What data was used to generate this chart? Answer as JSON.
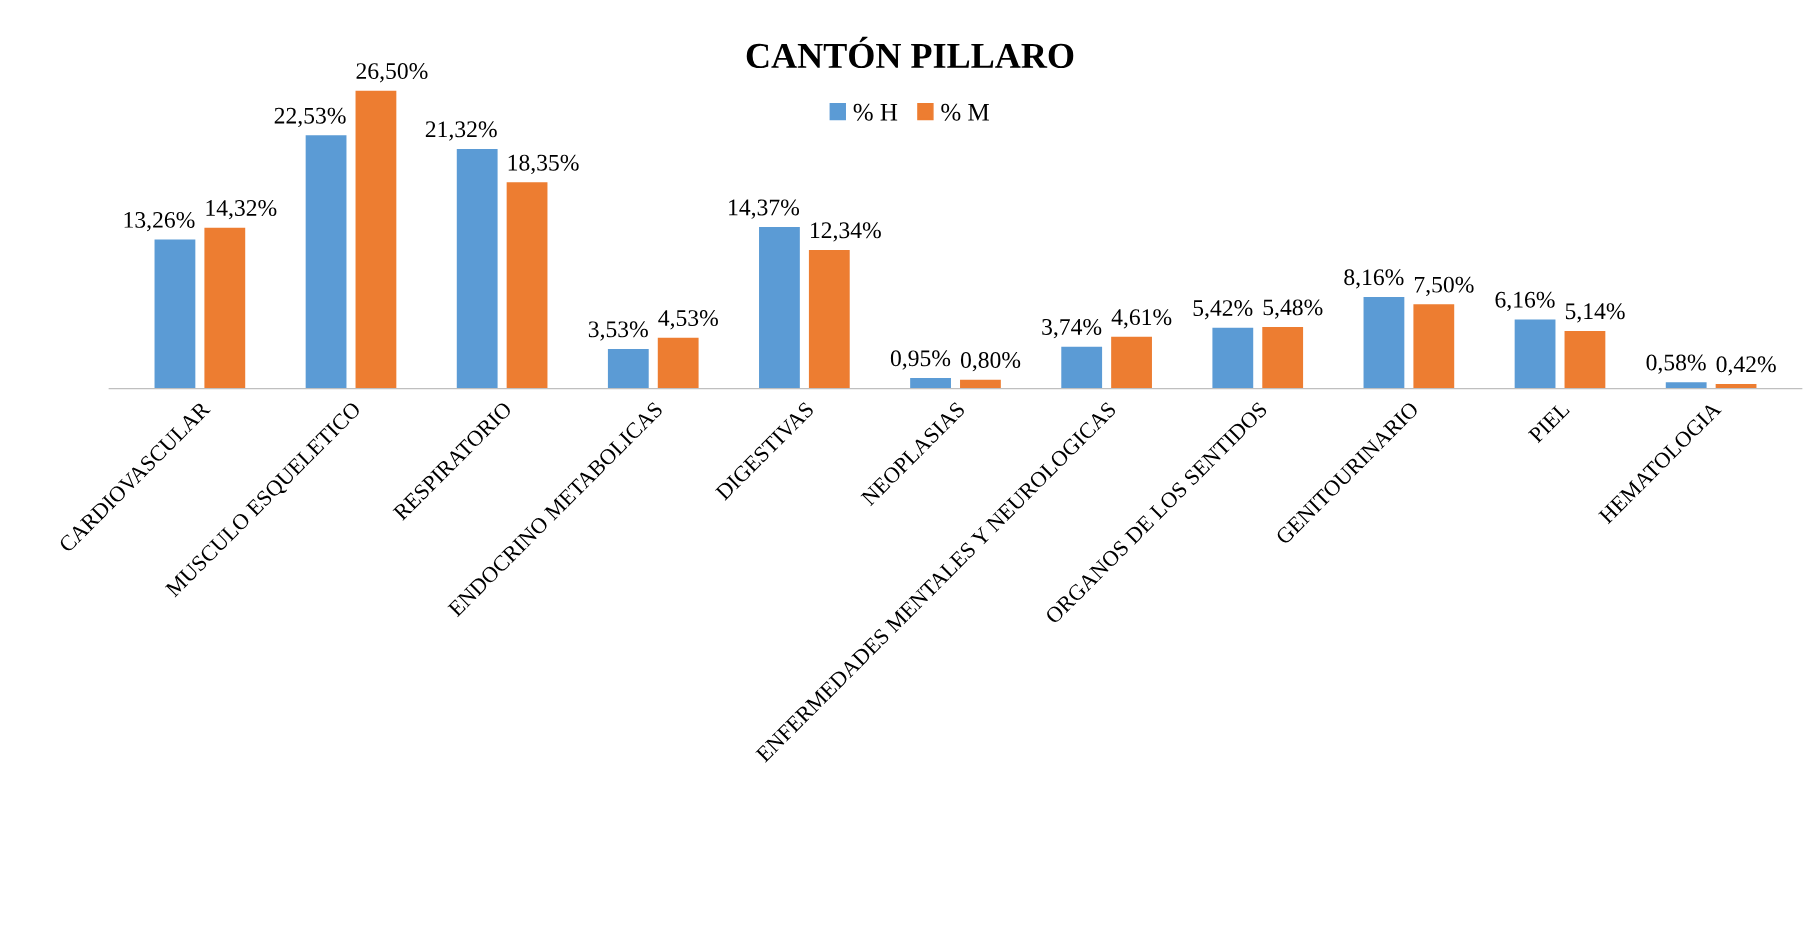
{
  "chart_data": {
    "type": "bar",
    "title": "CANTÓN PILLARO",
    "categories": [
      "CARDIOVASCULAR",
      "MUSCULO ESQUELETICO",
      "RESPIRATORIO",
      "ENDOCRINO METABOLICAS",
      "DIGESTIVAS",
      "NEOPLASIAS",
      "ENFERMEDADES MENTALES Y NEUROLOGICAS",
      "ORGANOS DE LOS SENTIDOS",
      "GENITOURINARIO",
      "PIEL",
      "HEMATOLOGIA"
    ],
    "series": [
      {
        "name": "% H",
        "color": "#5b9bd5",
        "values": [
          13.26,
          22.53,
          21.32,
          3.53,
          14.37,
          0.95,
          3.74,
          5.42,
          8.16,
          6.16,
          0.58
        ],
        "value_labels": [
          "13,26%",
          "22,53%",
          "21,32%",
          "3,53%",
          "14,37%",
          "0,95%",
          "3,74%",
          "5,42%",
          "8,16%",
          "6,16%",
          "0,58%"
        ]
      },
      {
        "name": "% M",
        "color": "#ed7d31",
        "values": [
          14.32,
          26.5,
          18.35,
          4.53,
          12.34,
          0.8,
          4.61,
          5.48,
          7.5,
          5.14,
          0.42
        ],
        "value_labels": [
          "14,32%",
          "26,50%",
          "18,35%",
          "4,53%",
          "12,34%",
          "0,80%",
          "4,61%",
          "5,48%",
          "7,50%",
          "5,14%",
          "0,42%"
        ]
      }
    ],
    "legend": "top",
    "grid": false
  }
}
